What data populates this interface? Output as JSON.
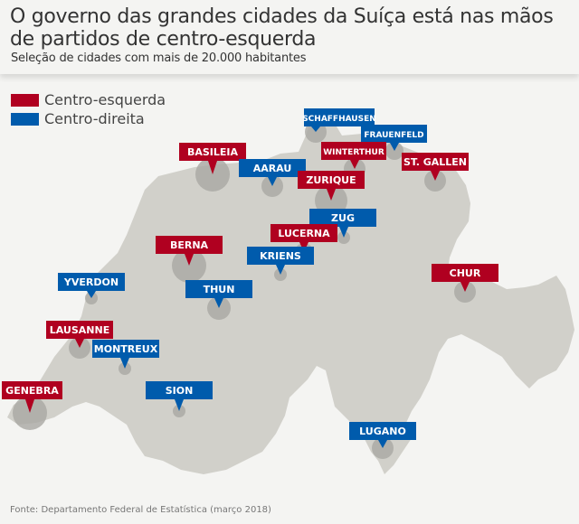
{
  "header": {
    "title": "O governo das grandes cidades da Suíça está nas mãos de partidos de centro-esquerda",
    "subtitle": "Seleção de cidades com mais de 20.000 habitantes"
  },
  "legend": [
    {
      "label": "Centro-esquerda",
      "color": "#b00020"
    },
    {
      "label": "Centro-direita",
      "color": "#005bac"
    }
  ],
  "colors": {
    "left": "#b00020",
    "right": "#005bac",
    "land": "#d1d0ca",
    "bubble": "#a9a8a2",
    "background": "#f4f4f2"
  },
  "cities": [
    {
      "name": "SCHAFFHAUSEN",
      "lean": "right",
      "size": "medium"
    },
    {
      "name": "FRAUENFELD",
      "lean": "right",
      "size": "small"
    },
    {
      "name": "WINTERTHUR",
      "lean": "left",
      "size": "medium"
    },
    {
      "name": "ST. GALLEN",
      "lean": "left",
      "size": "medium"
    },
    {
      "name": "BASILEIA",
      "lean": "left",
      "size": "large"
    },
    {
      "name": "AARAU",
      "lean": "right",
      "size": "small"
    },
    {
      "name": "ZURIQUE",
      "lean": "left",
      "size": "large"
    },
    {
      "name": "ZUG",
      "lean": "right",
      "size": "small"
    },
    {
      "name": "LUCERNA",
      "lean": "left",
      "size": "medium"
    },
    {
      "name": "KRIENS",
      "lean": "right",
      "size": "small"
    },
    {
      "name": "BERNA",
      "lean": "left",
      "size": "large"
    },
    {
      "name": "THUN",
      "lean": "right",
      "size": "medium"
    },
    {
      "name": "YVERDON",
      "lean": "right",
      "size": "small"
    },
    {
      "name": "CHUR",
      "lean": "left",
      "size": "medium"
    },
    {
      "name": "LAUSANNE",
      "lean": "left",
      "size": "medium"
    },
    {
      "name": "MONTREUX",
      "lean": "right",
      "size": "small"
    },
    {
      "name": "GENEBRA",
      "lean": "left",
      "size": "large"
    },
    {
      "name": "SION",
      "lean": "right",
      "size": "small"
    },
    {
      "name": "LUGANO",
      "lean": "right",
      "size": "medium"
    }
  ],
  "source": "Fonte: Departamento Federal de Estatística (março 2018)"
}
